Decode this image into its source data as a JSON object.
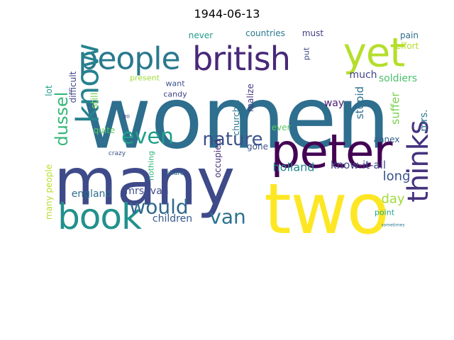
{
  "title": "1944-06-13",
  "words": [
    {
      "text": "women",
      "color": "#2e6e8e"
    },
    {
      "text": "many",
      "color": "#3e4a89"
    },
    {
      "text": "two",
      "color": "#fde725"
    },
    {
      "text": "peter",
      "color": "#440154"
    },
    {
      "text": "book",
      "color": "#21918c"
    },
    {
      "text": "people",
      "color": "#2a788e"
    },
    {
      "text": "british",
      "color": "#482878"
    },
    {
      "text": "yet",
      "color": "#b5de2b"
    },
    {
      "text": "know",
      "color": "#26828e"
    },
    {
      "text": "nature",
      "color": "#3b528b"
    },
    {
      "text": "even",
      "color": "#1f9e89"
    },
    {
      "text": "would",
      "color": "#31688e"
    },
    {
      "text": "thinks",
      "color": "#46327e"
    },
    {
      "text": "dussel",
      "color": "#35b779"
    },
    {
      "text": "van",
      "color": "#2c728e"
    },
    {
      "text": "holland",
      "color": "#23888e"
    },
    {
      "text": "know-it-all",
      "color": "#3f4788"
    },
    {
      "text": "long",
      "color": "#3b528b"
    },
    {
      "text": "day",
      "color": "#a0da39"
    },
    {
      "text": "england",
      "color": "#2e6e8e"
    },
    {
      "text": "children",
      "color": "#38598c"
    },
    {
      "text": "mrs. van",
      "color": "#3e4c8a"
    },
    {
      "text": "countries",
      "color": "#2a788e"
    },
    {
      "text": "must",
      "color": "#433e85"
    },
    {
      "text": "never",
      "color": "#1f9a8a"
    },
    {
      "text": "much",
      "color": "#414487"
    },
    {
      "text": "soldiers",
      "color": "#4ac16d"
    },
    {
      "text": "pain",
      "color": "#2f6c8e"
    },
    {
      "text": "effort",
      "color": "#b5de2b"
    },
    {
      "text": "stupid",
      "color": "#2d708e"
    },
    {
      "text": "suffer",
      "color": "#7ad151"
    },
    {
      "text": "mrs.",
      "color": "#2a788e"
    },
    {
      "text": "way",
      "color": "#481a6c"
    },
    {
      "text": "annex",
      "color": "#34608d"
    },
    {
      "text": "ever",
      "color": "#5ec962"
    },
    {
      "text": "realize",
      "color": "#443983"
    },
    {
      "text": "churchill",
      "color": "#2a788e"
    },
    {
      "text": "gone",
      "color": "#3b528b"
    },
    {
      "text": "occupied",
      "color": "#472d7b"
    },
    {
      "text": "still",
      "color": "#7ad151"
    },
    {
      "text": "quite",
      "color": "#5ec962"
    },
    {
      "text": "difficult",
      "color": "#3f4788"
    },
    {
      "text": "lot",
      "color": "#1f9e89"
    },
    {
      "text": "many people",
      "color": "#b5de2b"
    },
    {
      "text": "want",
      "color": "#3b528b"
    },
    {
      "text": "candy",
      "color": "#414487"
    },
    {
      "text": "present",
      "color": "#a0da39"
    },
    {
      "text": "nothing",
      "color": "#32b67a"
    },
    {
      "text": "put",
      "color": "#3e4a89"
    },
    {
      "text": "point",
      "color": "#22a884"
    },
    {
      "text": "share",
      "color": "#2e6e8e"
    },
    {
      "text": "crazy",
      "color": "#3b528b"
    },
    {
      "text": "go",
      "color": "#3e4c8a"
    },
    {
      "text": "sometimes",
      "color": "#2a788e"
    }
  ]
}
